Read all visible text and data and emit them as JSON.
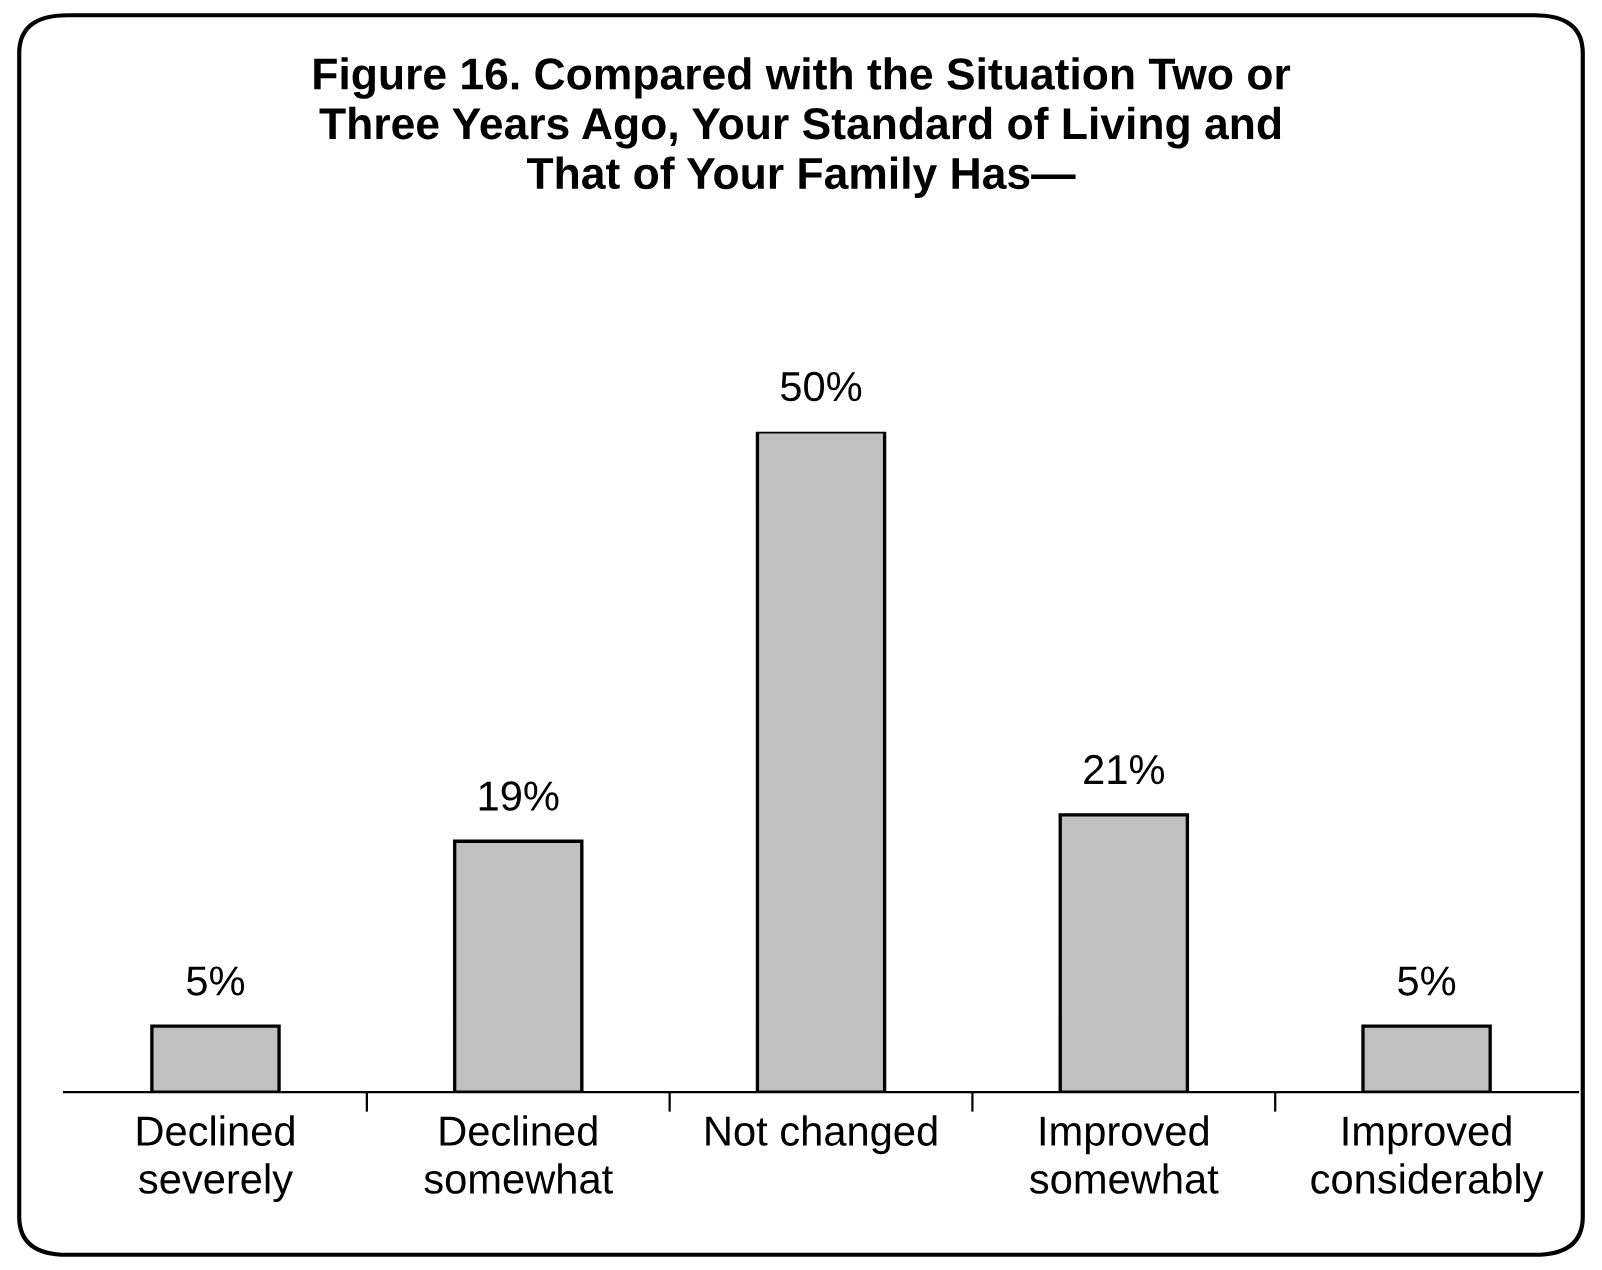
{
  "chart_data": {
    "type": "bar",
    "title": "Figure 16. Compared with the Situation Two or\nThree Years Ago, Your Standard of Living and\nThat of Your Family Has—",
    "categories": [
      "Declined\nseverely",
      "Declined\nsomewhat",
      "Not changed",
      "Improved\nsomewhat",
      "Improved\nconsiderably"
    ],
    "values": [
      5,
      19,
      50,
      21,
      5
    ],
    "color": "#c0c0c0",
    "data_labels": true,
    "value_labels": [
      "5%",
      "19%",
      "50%",
      "21%",
      "5%"
    ],
    "grid": false,
    "legend": false
  }
}
